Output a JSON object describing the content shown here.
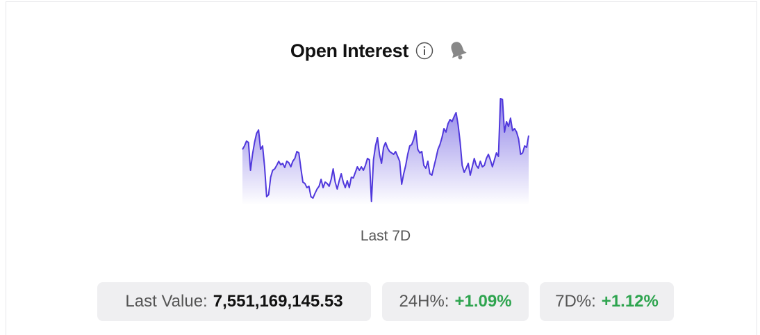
{
  "card": {
    "title": "Open Interest",
    "sparkline": {
      "type": "line",
      "values": [
        85,
        90,
        97,
        95,
        55,
        78,
        95,
        108,
        113,
        85,
        90,
        60,
        17,
        20,
        45,
        55,
        57,
        62,
        68,
        63,
        65,
        59,
        68,
        66,
        60,
        68,
        72,
        82,
        80,
        58,
        38,
        36,
        30,
        32,
        17,
        15,
        22,
        28,
        32,
        42,
        30,
        38,
        36,
        32,
        42,
        57,
        38,
        28,
        40,
        50,
        38,
        30,
        40,
        30,
        45,
        44,
        52,
        60,
        55,
        60,
        55,
        62,
        72,
        70,
        10,
        70,
        90,
        102,
        78,
        65,
        88,
        95,
        87,
        82,
        80,
        78,
        82,
        75,
        68,
        35,
        50,
        62,
        78,
        90,
        92,
        100,
        112,
        85,
        80,
        82,
        62,
        58,
        68,
        50,
        48,
        60,
        72,
        85,
        92,
        102,
        115,
        110,
        122,
        128,
        125,
        132,
        138,
        120,
        95,
        62,
        52,
        58,
        65,
        48,
        60,
        72,
        62,
        58,
        68,
        60,
        62,
        72,
        78,
        70,
        60,
        70,
        80,
        75,
        158,
        157,
        110,
        125,
        118,
        130,
        112,
        115,
        110,
        100,
        78,
        80,
        90,
        88,
        105
      ]
    },
    "period": "Last 7D",
    "stats": [
      {
        "label": "Last Value:",
        "value": "7,551,169,145.53"
      },
      {
        "label": "24H%:",
        "value": "+1.09%"
      },
      {
        "label": "7D%:",
        "value": "+1.12%"
      }
    ]
  }
}
